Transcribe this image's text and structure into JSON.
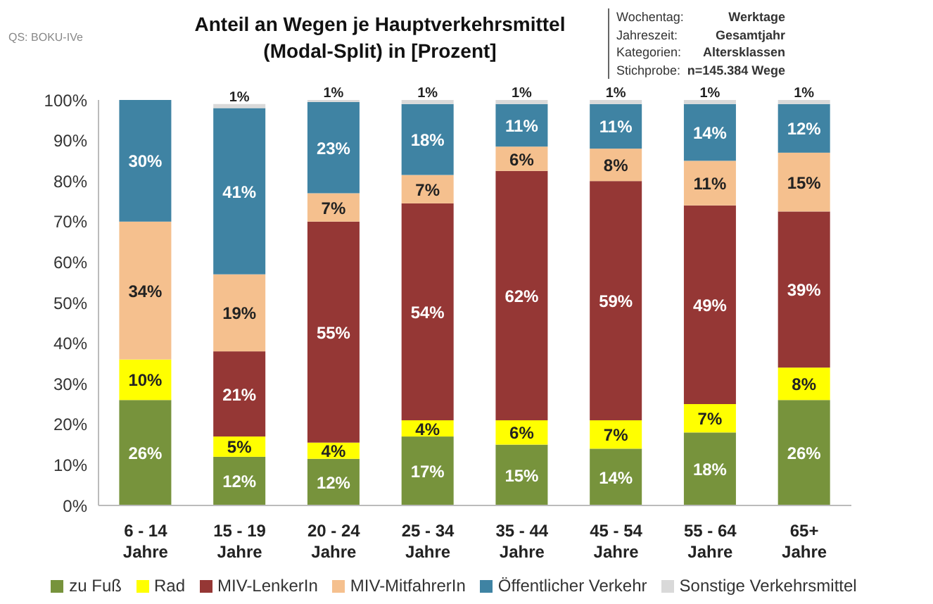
{
  "chart_data": {
    "type": "bar",
    "stacked": true,
    "title": "Anteil an Wegen je Hauptverkehrsmittel (Modal-Split) in [Prozent]",
    "annotations": [
      "QS: BOKU-IVe",
      "Wochentag: Werktage",
      "Jahreszeit: Gesamtjahr",
      "Kategorien: Altersklassen",
      "Stichprobe: n=145.384 Wege"
    ],
    "categories": [
      "6 - 14 Jahre",
      "15 - 19 Jahre",
      "20 - 24 Jahre",
      "25 - 34 Jahre",
      "35 - 44 Jahre",
      "45 - 54 Jahre",
      "55 - 64 Jahre",
      "65+ Jahre"
    ],
    "ylim": [
      0,
      100
    ],
    "yticks": [
      {
        "value": 0,
        "label": "0%"
      },
      {
        "value": 10,
        "label": "10%"
      },
      {
        "value": 20,
        "label": "20%"
      },
      {
        "value": 30,
        "label": "30%"
      },
      {
        "value": 40,
        "label": "40%"
      },
      {
        "value": 50,
        "label": "50%"
      },
      {
        "value": 60,
        "label": "60%"
      },
      {
        "value": 70,
        "label": "70%"
      },
      {
        "value": 80,
        "label": "80%"
      },
      {
        "value": 90,
        "label": "90%"
      },
      {
        "value": 100,
        "label": "100%"
      }
    ],
    "grid": false,
    "legend": "bottom",
    "series": [
      {
        "name": "zu Fuß",
        "color": "#77933c",
        "values": [
          26,
          12,
          11.5,
          17,
          15,
          14,
          18,
          26
        ],
        "value_labels": [
          "26%",
          "12%",
          "12%",
          "17%",
          "15%",
          "14%",
          "18%",
          "26%"
        ]
      },
      {
        "name": "Rad",
        "color": "#ffff00",
        "values": [
          10,
          5,
          4,
          4,
          6,
          7,
          7,
          8
        ],
        "value_labels": [
          "10%",
          "5%",
          "4%",
          "4%",
          "6%",
          "7%",
          "7%",
          "8%"
        ]
      },
      {
        "name": "MIV-LenkerIn",
        "color": "#953735",
        "values": [
          0,
          21,
          54.5,
          53.5,
          61.5,
          59,
          49,
          38.5
        ],
        "value_labels": [
          null,
          "21%",
          "55%",
          "54%",
          "62%",
          "59%",
          "49%",
          "39%"
        ]
      },
      {
        "name": "MIV-MitfahrerIn",
        "color": "#f5c08e",
        "values": [
          34,
          19,
          7,
          7,
          6,
          8,
          11,
          14.5
        ],
        "value_labels": [
          "34%",
          "19%",
          "7%",
          "7%",
          "6%",
          "8%",
          "11%",
          "15%"
        ]
      },
      {
        "name": "Öffentlicher Verkehr",
        "color": "#3f83a3",
        "values": [
          30,
          41,
          22.5,
          17.5,
          10.5,
          11,
          14,
          12
        ],
        "value_labels": [
          "30%",
          "41%",
          "23%",
          "18%",
          "11%",
          "11%",
          "14%",
          "12%"
        ]
      },
      {
        "name": "Sonstige Verkehrsmittel",
        "color": "#d9d9d9",
        "values": [
          0,
          1,
          0.5,
          1,
          1,
          1,
          1,
          1
        ],
        "value_labels": [
          null,
          "1%",
          "1%",
          "1%",
          "1%",
          "1%",
          "1%",
          "1%"
        ]
      }
    ]
  }
}
